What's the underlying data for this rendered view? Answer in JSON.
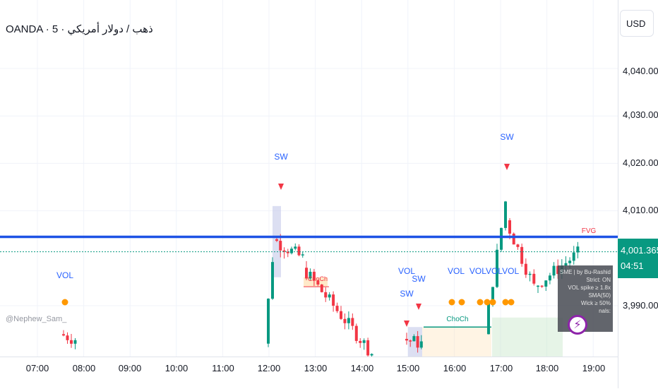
{
  "header": {
    "title_parts": [
      "OANDA",
      "5",
      "ذهب / دولار أمريكي"
    ]
  },
  "axis": {
    "currency_button": "USD",
    "price_labels": [
      "4,040.000",
      "4,030.000",
      "4,020.000",
      "4,010.000",
      "3,990.000"
    ],
    "current_price": "4,001.365",
    "countdown": "04:51"
  },
  "time_axis": {
    "labels": [
      "07:00",
      "08:00",
      "09:00",
      "10:00",
      "11:00",
      "12:00",
      "13:00",
      "14:00",
      "15:00",
      "16:00",
      "17:00",
      "18:00",
      "19:00"
    ]
  },
  "watermark": "@Nephew_Sam_",
  "info_box": {
    "lines": [
      "SME | by Bu-Rashid",
      "Strict: ON",
      "VOL spike ≥ 1.8x SMA(50)",
      "Wick ≥ 50%",
      "nals:"
    ]
  },
  "annotations": {
    "vol": "VOL",
    "sw": "SW",
    "choch": "ChoCh",
    "fvg": "FVG",
    "vol_cluster": "VOLVOLVOL"
  },
  "colors": {
    "up": "#089981",
    "down": "#f23645",
    "level_line": "#1e53e5",
    "label_blue": "#2962ff",
    "orange": "#ff9800",
    "choch_red": "#f23645",
    "choch_green": "#089981"
  },
  "chart_data": {
    "type": "candlestick",
    "symbol": "OANDA · 5",
    "horizontal_level": 4004.5,
    "current_price": 4001.365,
    "y_ticks": [
      4040,
      4030,
      4020,
      4010,
      3990
    ],
    "x_ticks": [
      "07:00",
      "08:00",
      "09:00",
      "10:00",
      "11:00",
      "12:00",
      "13:00",
      "14:00",
      "15:00",
      "16:00",
      "17:00",
      "18:00",
      "19:00"
    ]
  }
}
